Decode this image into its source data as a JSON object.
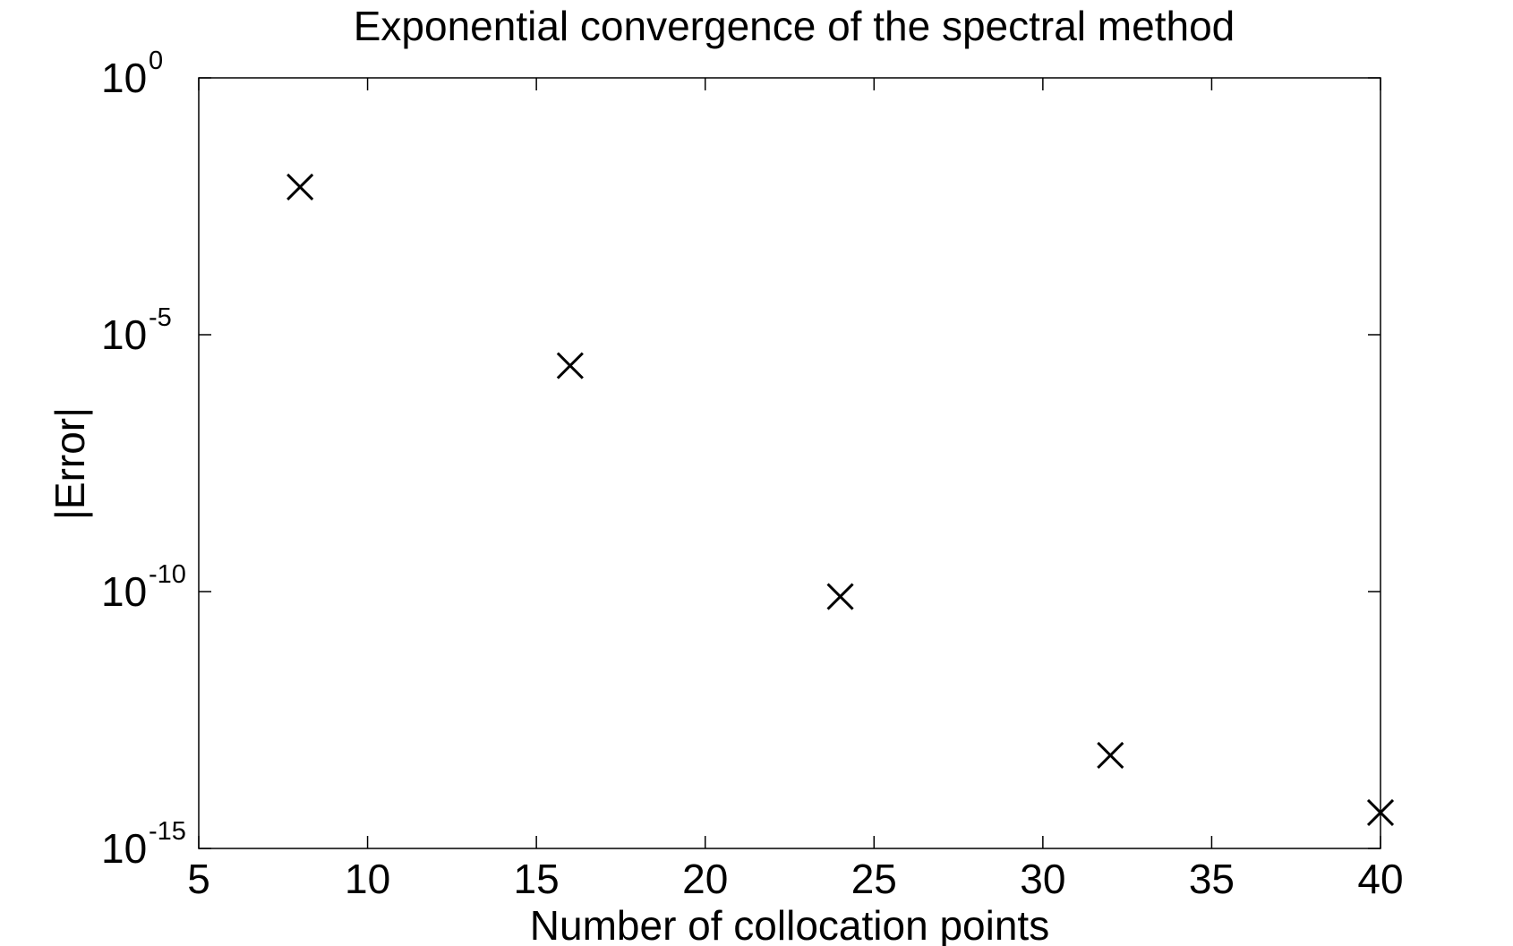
{
  "chart_data": {
    "type": "scatter",
    "title": "Exponential convergence of the spectral method",
    "xlabel": "Number of collocation points",
    "ylabel": "|Error|",
    "xscale": "linear",
    "yscale": "log",
    "xlim": [
      5,
      40
    ],
    "ylim": [
      1e-15,
      1
    ],
    "x_ticks": [
      5,
      10,
      15,
      20,
      25,
      30,
      35,
      40
    ],
    "y_ticks": [
      {
        "base": "10",
        "exp": "0",
        "value": 1
      },
      {
        "base": "10",
        "exp": "-5",
        "value": 1e-05
      },
      {
        "base": "10",
        "exp": "-10",
        "value": 1e-10
      },
      {
        "base": "10",
        "exp": "-15",
        "value": 1e-15
      }
    ],
    "grid": false,
    "legend": "none",
    "marker": "x",
    "marker_color": "#000000",
    "series": [
      {
        "x": [
          8,
          16,
          24,
          32,
          40
        ],
        "y": [
          0.0075,
          2.5e-06,
          8e-11,
          6.5e-14,
          5e-15
        ]
      }
    ]
  }
}
